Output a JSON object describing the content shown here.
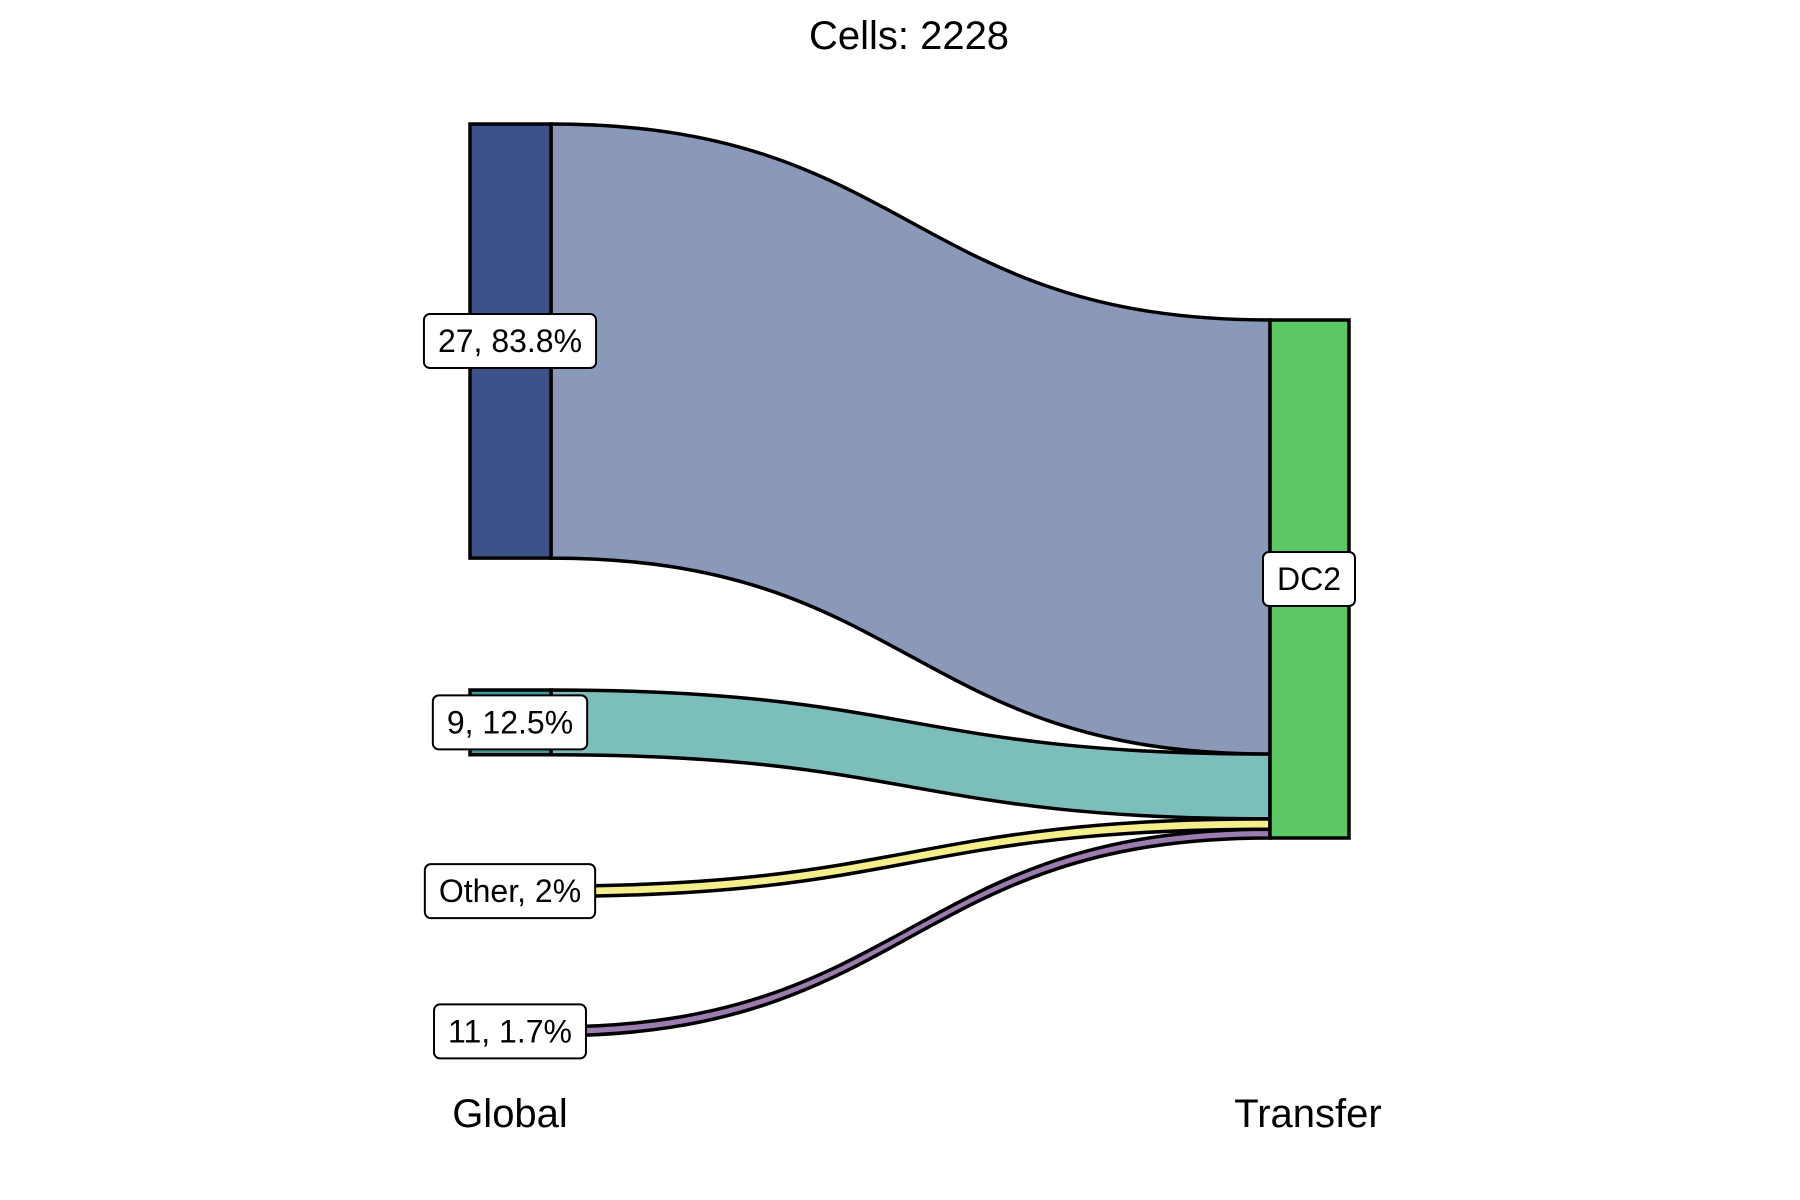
{
  "chart_data": {
    "type": "sankey",
    "title": "Cells:  2228",
    "axes": [
      "Global",
      "Transfer"
    ],
    "source_nodes": [
      {
        "id": "27",
        "label": "27, 83.8%",
        "percent": 83.8,
        "node_color": "#3C5288",
        "flow_color": "#8A99BA"
      },
      {
        "id": "9",
        "label": "9, 12.5%",
        "percent": 12.5,
        "node_color": "#3C9B94",
        "flow_color": "#7BBEBC"
      },
      {
        "id": "Other",
        "label": "Other, 2%",
        "percent": 2.0,
        "node_color": "#E8E05A",
        "flow_color": "#F5EE8A"
      },
      {
        "id": "11",
        "label": "11, 1.7%",
        "percent": 1.7,
        "node_color": "#6B4A7E",
        "flow_color": "#9C7BB0"
      }
    ],
    "target_nodes": [
      {
        "id": "DC2",
        "label": "DC2",
        "percent": 100,
        "node_color": "#5CC863"
      }
    ],
    "flows": [
      {
        "from": "27",
        "to": "DC2",
        "percent": 83.8
      },
      {
        "from": "9",
        "to": "DC2",
        "percent": 12.5
      },
      {
        "from": "Other",
        "to": "DC2",
        "percent": 2.0
      },
      {
        "from": "11",
        "to": "DC2",
        "percent": 1.7
      }
    ]
  }
}
